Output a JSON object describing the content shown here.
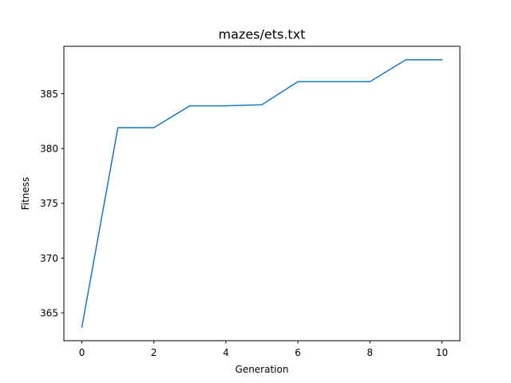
{
  "chart_data": {
    "type": "line",
    "title": "mazes/ets.txt",
    "xlabel": "Generation",
    "ylabel": "Fitness",
    "xlim": [
      -0.5,
      10.5
    ],
    "ylim": [
      362.46,
      389.33
    ],
    "x_ticks": [
      0,
      2,
      4,
      6,
      8,
      10
    ],
    "y_ticks": [
      365,
      370,
      375,
      380,
      385
    ],
    "grid": false,
    "series": [
      {
        "color": "#1f77b4",
        "x": [
          0,
          1,
          2,
          3,
          4,
          5,
          6,
          7,
          8,
          9,
          10
        ],
        "y": [
          363.7,
          381.9,
          381.9,
          383.9,
          383.9,
          384.0,
          386.1,
          386.1,
          386.1,
          388.1,
          388.1
        ]
      }
    ]
  }
}
